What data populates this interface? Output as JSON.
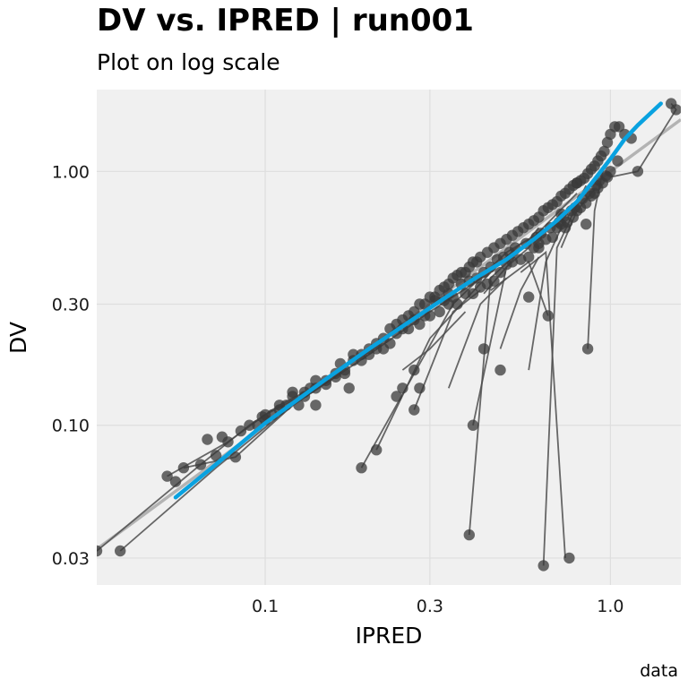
{
  "chart_data": {
    "type": "scatter",
    "title": "DV vs. IPRED | run001",
    "subtitle": "Plot on log scale",
    "xlabel": "IPRED",
    "ylabel": "DV",
    "caption": "data",
    "x_scale": "log10",
    "y_scale": "log10",
    "xlim": [
      0.0325,
      1.6
    ],
    "ylim": [
      0.0235,
      2.1
    ],
    "x_ticks": [
      {
        "value": 0.1,
        "label": "0.1"
      },
      {
        "value": 0.3,
        "label": "0.3"
      },
      {
        "value": 1.0,
        "label": "1.0"
      }
    ],
    "y_ticks": [
      {
        "value": 0.03,
        "label": "0.03"
      },
      {
        "value": 0.1,
        "label": "0.10"
      },
      {
        "value": 0.3,
        "label": "0.30"
      },
      {
        "value": 1.0,
        "label": "1.00"
      }
    ],
    "grid": true,
    "legend": "none",
    "colors": {
      "panel_background": "#f0f0f0",
      "gridline": "#dedede",
      "points": "#3a3a3a",
      "connect_lines": "#4d4d4d",
      "identity_line": "#b3b3b3",
      "smooth_line": "#09a2e0"
    },
    "identity_line": {
      "name": "identity",
      "x": [
        0.0325,
        1.6
      ],
      "y": [
        0.0325,
        1.6
      ]
    },
    "smooth_line": {
      "name": "smooth",
      "x": [
        0.055,
        0.07,
        0.1,
        0.15,
        0.2,
        0.3,
        0.4,
        0.5,
        0.6,
        0.7,
        0.8,
        0.9,
        1.0,
        1.1,
        1.2,
        1.4
      ],
      "y": [
        0.052,
        0.068,
        0.102,
        0.152,
        0.2,
        0.29,
        0.375,
        0.45,
        0.54,
        0.64,
        0.76,
        0.93,
        1.12,
        1.34,
        1.52,
        1.85
      ]
    },
    "points": {
      "x": [
        0.0325,
        0.052,
        0.058,
        0.065,
        0.068,
        0.075,
        0.078,
        0.082,
        0.085,
        0.09,
        0.095,
        0.098,
        0.1,
        0.105,
        0.11,
        0.115,
        0.12,
        0.125,
        0.13,
        0.135,
        0.14,
        0.15,
        0.16,
        0.165,
        0.17,
        0.18,
        0.19,
        0.2,
        0.21,
        0.22,
        0.23,
        0.24,
        0.25,
        0.26,
        0.27,
        0.28,
        0.29,
        0.3,
        0.31,
        0.32,
        0.33,
        0.34,
        0.35,
        0.36,
        0.37,
        0.38,
        0.39,
        0.4,
        0.41,
        0.42,
        0.44,
        0.46,
        0.48,
        0.5,
        0.52,
        0.54,
        0.56,
        0.58,
        0.6,
        0.62,
        0.64,
        0.66,
        0.68,
        0.7,
        0.72,
        0.74,
        0.76,
        0.78,
        0.8,
        0.82,
        0.84,
        0.86,
        0.88,
        0.9,
        0.92,
        0.94,
        0.96,
        0.98,
        1.0,
        1.03,
        1.06,
        1.1,
        1.15,
        1.2,
        1.5,
        1.55,
        0.12,
        0.14,
        0.16,
        0.18,
        0.2,
        0.22,
        0.24,
        0.26,
        0.28,
        0.3,
        0.32,
        0.34,
        0.36,
        0.38,
        0.4,
        0.42,
        0.44,
        0.46,
        0.48,
        0.5,
        0.52,
        0.55,
        0.58,
        0.6,
        0.62,
        0.65,
        0.68,
        0.7,
        0.72,
        0.75,
        0.78,
        0.8,
        0.82,
        0.85,
        0.88,
        0.9,
        0.92,
        0.95,
        0.98,
        1.0,
        1.05,
        0.1,
        0.11,
        0.13,
        0.15,
        0.17,
        0.19,
        0.21,
        0.23,
        0.25,
        0.27,
        0.29,
        0.31,
        0.33,
        0.35,
        0.37,
        0.39,
        0.41,
        0.43,
        0.45,
        0.47,
        0.49,
        0.51,
        0.53,
        0.57,
        0.61,
        0.63,
        0.67,
        0.71,
        0.73,
        0.77,
        0.79,
        0.83,
        0.87,
        0.91,
        0.93,
        0.97,
        0.038,
        0.055,
        0.072,
        0.19,
        0.21,
        0.27,
        0.39,
        0.4,
        0.64,
        0.66,
        0.74,
        0.76,
        0.86,
        0.27,
        0.25,
        0.34,
        0.43,
        0.48,
        0.58,
        0.62,
        0.72,
        0.8,
        0.85,
        0.14,
        0.175,
        0.24,
        0.28
      ],
      "y": [
        0.032,
        0.063,
        0.068,
        0.07,
        0.088,
        0.09,
        0.086,
        0.075,
        0.095,
        0.1,
        0.1,
        0.108,
        0.11,
        0.11,
        0.12,
        0.12,
        0.13,
        0.12,
        0.135,
        0.14,
        0.14,
        0.15,
        0.16,
        0.175,
        0.165,
        0.18,
        0.19,
        0.2,
        0.21,
        0.22,
        0.24,
        0.25,
        0.26,
        0.27,
        0.28,
        0.3,
        0.3,
        0.32,
        0.32,
        0.34,
        0.35,
        0.36,
        0.38,
        0.39,
        0.4,
        0.4,
        0.42,
        0.44,
        0.44,
        0.46,
        0.48,
        0.5,
        0.52,
        0.54,
        0.56,
        0.58,
        0.6,
        0.62,
        0.64,
        0.66,
        0.7,
        0.72,
        0.74,
        0.76,
        0.8,
        0.82,
        0.85,
        0.88,
        0.9,
        0.92,
        0.94,
        0.98,
        1.02,
        1.05,
        1.1,
        1.15,
        1.2,
        1.3,
        1.4,
        1.5,
        1.5,
        1.4,
        1.35,
        1.0,
        1.85,
        1.75,
        0.135,
        0.15,
        0.155,
        0.19,
        0.19,
        0.2,
        0.23,
        0.24,
        0.25,
        0.27,
        0.28,
        0.3,
        0.3,
        0.33,
        0.33,
        0.35,
        0.36,
        0.37,
        0.4,
        0.43,
        0.44,
        0.45,
        0.46,
        0.5,
        0.52,
        0.54,
        0.55,
        0.6,
        0.62,
        0.63,
        0.66,
        0.7,
        0.72,
        0.75,
        0.8,
        0.82,
        0.86,
        0.9,
        0.95,
        1.0,
        1.1,
        0.105,
        0.115,
        0.13,
        0.145,
        0.16,
        0.18,
        0.2,
        0.21,
        0.24,
        0.26,
        0.27,
        0.31,
        0.31,
        0.32,
        0.36,
        0.37,
        0.38,
        0.4,
        0.42,
        0.45,
        0.46,
        0.48,
        0.5,
        0.52,
        0.55,
        0.57,
        0.6,
        0.63,
        0.66,
        0.7,
        0.72,
        0.78,
        0.82,
        0.88,
        0.92,
        0.96,
        0.032,
        0.06,
        0.076,
        0.068,
        0.08,
        0.115,
        0.037,
        0.1,
        0.028,
        0.27,
        0.6,
        0.03,
        0.2,
        0.165,
        0.14,
        0.33,
        0.2,
        0.165,
        0.32,
        0.5,
        0.68,
        0.9,
        0.62,
        0.12,
        0.14,
        0.13,
        0.14
      ]
    },
    "connect_lines": [
      {
        "x": [
          0.0325,
          0.065,
          0.09,
          0.11,
          0.13,
          0.15
        ],
        "y": [
          0.032,
          0.07,
          0.1,
          0.12,
          0.135,
          0.15
        ]
      },
      {
        "x": [
          0.038,
          0.072,
          0.12,
          0.2,
          0.3,
          0.45
        ],
        "y": [
          0.032,
          0.068,
          0.12,
          0.19,
          0.28,
          0.4
        ]
      },
      {
        "x": [
          0.19,
          0.35,
          0.5,
          0.66
        ],
        "y": [
          0.068,
          0.3,
          0.48,
          0.6
        ]
      },
      {
        "x": [
          0.21,
          0.3,
          0.45,
          0.55
        ],
        "y": [
          0.08,
          0.22,
          0.4,
          0.52
        ]
      },
      {
        "x": [
          0.39,
          0.45,
          0.6,
          0.8
        ],
        "y": [
          0.037,
          0.38,
          0.55,
          0.82
        ]
      },
      {
        "x": [
          0.4,
          0.5,
          0.62
        ],
        "y": [
          0.1,
          0.42,
          0.6
        ]
      },
      {
        "x": [
          0.64,
          0.7,
          0.85
        ],
        "y": [
          0.028,
          0.5,
          0.88
        ]
      },
      {
        "x": [
          0.66,
          0.58,
          0.45
        ],
        "y": [
          0.27,
          0.44,
          0.34
        ]
      },
      {
        "x": [
          0.74,
          0.65,
          0.55
        ],
        "y": [
          0.03,
          0.48,
          0.4
        ]
      },
      {
        "x": [
          0.86,
          0.9,
          0.95
        ],
        "y": [
          0.2,
          0.7,
          1.0
        ]
      },
      {
        "x": [
          0.27,
          0.35,
          0.42
        ],
        "y": [
          0.115,
          0.28,
          0.34
        ]
      },
      {
        "x": [
          0.25,
          0.3,
          0.38
        ],
        "y": [
          0.165,
          0.2,
          0.28
        ]
      },
      {
        "x": [
          0.34,
          0.42,
          0.5
        ],
        "y": [
          0.14,
          0.3,
          0.38
        ]
      },
      {
        "x": [
          0.43,
          0.5,
          0.58
        ],
        "y": [
          0.33,
          0.42,
          0.5
        ]
      },
      {
        "x": [
          0.48,
          0.55,
          0.62
        ],
        "y": [
          0.2,
          0.34,
          0.46
        ]
      },
      {
        "x": [
          0.58,
          0.65,
          0.72
        ],
        "y": [
          0.165,
          0.44,
          0.6
        ]
      },
      {
        "x": [
          0.72,
          0.8,
          0.9
        ],
        "y": [
          0.5,
          0.7,
          0.85
        ]
      },
      {
        "x": [
          1.5,
          1.55,
          1.2,
          1.0
        ],
        "y": [
          1.85,
          1.75,
          1.0,
          0.95
        ]
      },
      {
        "x": [
          0.052,
          0.078,
          0.1,
          0.14
        ],
        "y": [
          0.063,
          0.086,
          0.11,
          0.14
        ]
      },
      {
        "x": [
          0.058,
          0.082,
          0.12,
          0.16
        ],
        "y": [
          0.068,
          0.075,
          0.12,
          0.155
        ]
      }
    ]
  }
}
